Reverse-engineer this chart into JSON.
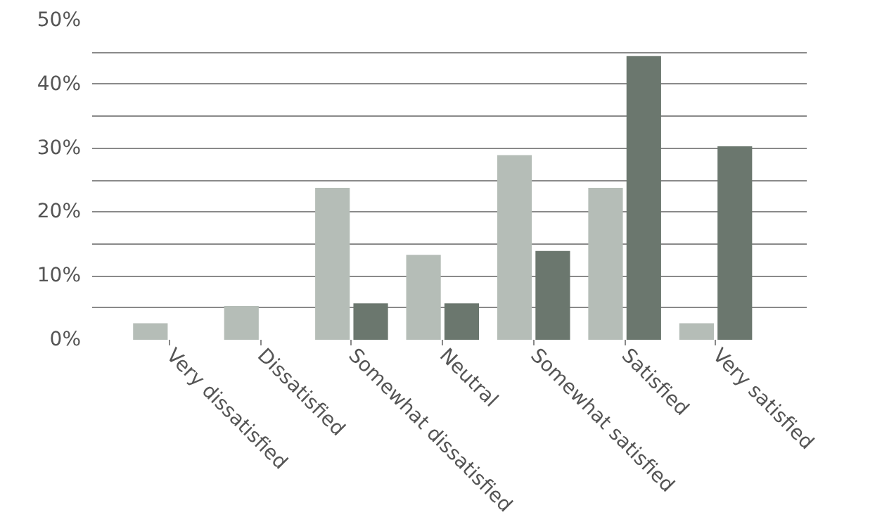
{
  "chart_data": {
    "type": "bar",
    "categories": [
      "Very dissatisfied",
      "Dissatisfied",
      "Somewhat dissatisfied",
      "Neutral",
      "Somewhat satisfied",
      "Satisfied",
      "Very satisfied"
    ],
    "series": [
      {
        "color": "#b5bdb7",
        "values": [
          2.6,
          5.3,
          23.8,
          13.3,
          28.9,
          23.8,
          2.6
        ]
      },
      {
        "color": "#6b776e",
        "values": [
          null,
          null,
          5.7,
          5.7,
          13.9,
          44.4,
          30.3
        ]
      }
    ],
    "ylim": [
      0,
      50
    ],
    "yticks": [
      {
        "value": 0,
        "label": "0%"
      },
      {
        "value": 5,
        "label": null
      },
      {
        "value": 10,
        "label": "10%"
      },
      {
        "value": 15,
        "label": null
      },
      {
        "value": 20,
        "label": "20%"
      },
      {
        "value": 25,
        "label": null
      },
      {
        "value": 30,
        "label": "30%"
      },
      {
        "value": 35,
        "label": null
      },
      {
        "value": 40,
        "label": "40%"
      },
      {
        "value": 45,
        "label": null
      },
      {
        "value": 50,
        "label": "50%"
      }
    ],
    "grid": "y"
  }
}
